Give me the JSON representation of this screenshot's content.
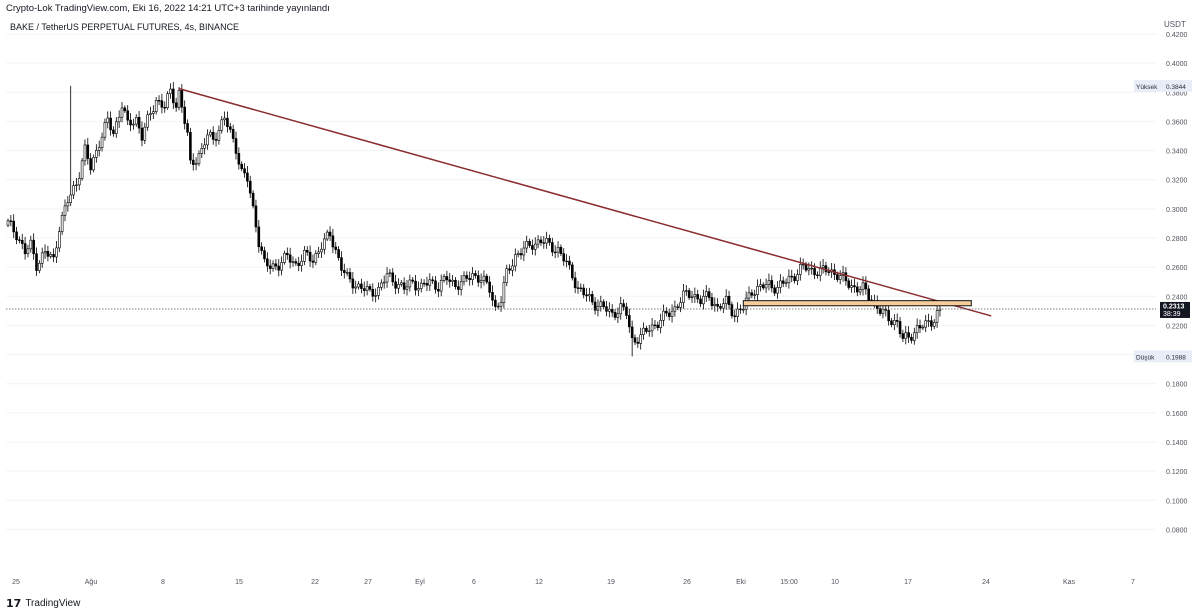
{
  "header": {
    "published": "Crypto-Lok TradingView.com, Eki 16, 2022 14:21 UTC+3 tarihinde yayınlandı",
    "symbol": "BAKE / TetherUS PERPETUAL FUTURES, 4s, BINANCE",
    "unit": "USDT"
  },
  "footer": {
    "brand": "TradingView",
    "logo_icon": "tradingview-logo-icon"
  },
  "colors": {
    "up": "#ffffff",
    "down": "#000000",
    "wick": "#000000",
    "trendline": "#8b2d30",
    "zone_fill": "#f5cc9a",
    "zone_border": "#111111",
    "price_tag": "#131722",
    "grid": "#f0f3fa"
  },
  "chart_data": {
    "type": "candlestick",
    "title": "BAKE / TetherUS PERPETUAL FUTURES, 4s, BINANCE",
    "xlabel": "",
    "ylabel": "USDT",
    "ylim": [
      0.07,
      0.42
    ],
    "y_ticks": [
      "0.4200",
      "0.4000",
      "0.3800",
      "0.3600",
      "0.3400",
      "0.3200",
      "0.3000",
      "0.2800",
      "0.2600",
      "0.2400",
      "0.2200",
      "0.2000",
      "0.1800",
      "0.1600",
      "0.1400",
      "0.1200",
      "0.1000",
      "0.0800"
    ],
    "x_ticks": [
      "25",
      "Ağu",
      "8",
      "15",
      "22",
      "27",
      "Eyl",
      "6",
      "12",
      "19",
      "26",
      "Eki",
      "15:00",
      "10",
      "17",
      "24",
      "Kas",
      "7"
    ],
    "high_label": {
      "text": "Yüksek",
      "value": "0.3844"
    },
    "low_label": {
      "text": "Düşük",
      "value": "0.1988"
    },
    "last_price": {
      "value": "0.2313",
      "countdown": "38:39"
    },
    "path": [
      [
        0,
        0.29
      ],
      [
        3,
        0.283
      ],
      [
        6,
        0.27
      ],
      [
        8,
        0.275
      ],
      [
        10,
        0.262
      ],
      [
        13,
        0.27
      ],
      [
        16,
        0.265
      ],
      [
        18,
        0.288
      ],
      [
        21,
        0.305
      ],
      [
        24,
        0.318
      ],
      [
        27,
        0.34
      ],
      [
        29,
        0.328
      ],
      [
        32,
        0.346
      ],
      [
        35,
        0.36
      ],
      [
        37,
        0.352
      ],
      [
        40,
        0.372
      ],
      [
        42,
        0.357
      ],
      [
        45,
        0.362
      ],
      [
        47,
        0.35
      ],
      [
        50,
        0.365
      ],
      [
        52,
        0.375
      ],
      [
        55,
        0.37
      ],
      [
        57,
        0.38
      ],
      [
        59,
        0.372
      ],
      [
        60,
        0.38
      ],
      [
        62,
        0.36
      ],
      [
        63,
        0.35
      ],
      [
        64,
        0.33
      ],
      [
        66,
        0.335
      ],
      [
        68,
        0.34
      ],
      [
        70,
        0.35
      ],
      [
        72,
        0.348
      ],
      [
        74,
        0.355
      ],
      [
        76,
        0.362
      ],
      [
        78,
        0.352
      ],
      [
        80,
        0.342
      ],
      [
        82,
        0.325
      ],
      [
        84,
        0.32
      ],
      [
        86,
        0.3
      ],
      [
        87,
        0.29
      ],
      [
        88,
        0.278
      ],
      [
        90,
        0.262
      ],
      [
        92,
        0.26
      ],
      [
        95,
        0.262
      ],
      [
        98,
        0.267
      ],
      [
        101,
        0.262
      ],
      [
        104,
        0.268
      ],
      [
        107,
        0.265
      ],
      [
        110,
        0.275
      ],
      [
        113,
        0.282
      ],
      [
        115,
        0.272
      ],
      [
        117,
        0.26
      ],
      [
        119,
        0.252
      ],
      [
        122,
        0.248
      ],
      [
        125,
        0.245
      ],
      [
        127,
        0.242
      ],
      [
        130,
        0.245
      ],
      [
        133,
        0.254
      ],
      [
        136,
        0.25
      ],
      [
        139,
        0.245
      ],
      [
        142,
        0.25
      ],
      [
        145,
        0.246
      ],
      [
        148,
        0.25
      ],
      [
        151,
        0.247
      ],
      [
        154,
        0.252
      ],
      [
        157,
        0.248
      ],
      [
        160,
        0.25
      ],
      [
        163,
        0.255
      ],
      [
        166,
        0.252
      ],
      [
        169,
        0.245
      ],
      [
        171,
        0.232
      ],
      [
        173,
        0.238
      ],
      [
        175,
        0.255
      ],
      [
        178,
        0.268
      ],
      [
        181,
        0.272
      ],
      [
        184,
        0.276
      ],
      [
        187,
        0.278
      ],
      [
        190,
        0.275
      ],
      [
        193,
        0.272
      ],
      [
        196,
        0.262
      ],
      [
        198,
        0.255
      ],
      [
        200,
        0.245
      ],
      [
        203,
        0.24
      ],
      [
        206,
        0.235
      ],
      [
        209,
        0.232
      ],
      [
        212,
        0.228
      ],
      [
        215,
        0.232
      ],
      [
        217,
        0.228
      ],
      [
        219,
        0.21
      ],
      [
        222,
        0.212
      ],
      [
        225,
        0.218
      ],
      [
        228,
        0.222
      ],
      [
        231,
        0.227
      ],
      [
        234,
        0.232
      ],
      [
        237,
        0.24
      ],
      [
        240,
        0.242
      ],
      [
        243,
        0.237
      ],
      [
        246,
        0.24
      ],
      [
        249,
        0.232
      ],
      [
        252,
        0.236
      ],
      [
        255,
        0.228
      ],
      [
        258,
        0.232
      ],
      [
        261,
        0.244
      ],
      [
        264,
        0.246
      ],
      [
        267,
        0.248
      ],
      [
        270,
        0.246
      ],
      [
        273,
        0.25
      ],
      [
        276,
        0.255
      ],
      [
        279,
        0.26
      ],
      [
        282,
        0.258
      ],
      [
        285,
        0.257
      ],
      [
        288,
        0.258
      ],
      [
        291,
        0.255
      ],
      [
        294,
        0.25
      ],
      [
        297,
        0.246
      ],
      [
        300,
        0.245
      ],
      [
        303,
        0.238
      ],
      [
        306,
        0.23
      ],
      [
        309,
        0.225
      ],
      [
        312,
        0.222
      ],
      [
        314,
        0.21
      ],
      [
        316,
        0.212
      ],
      [
        319,
        0.218
      ],
      [
        322,
        0.22
      ],
      [
        325,
        0.225
      ],
      [
        327,
        0.2313
      ]
    ],
    "trendline": {
      "from": [
        60,
        0.3825
      ],
      "to": [
        345,
        0.2265
      ]
    },
    "zone": {
      "x0": 258,
      "x1": 338,
      "y_top": 0.237,
      "y_bottom": 0.2335
    }
  }
}
